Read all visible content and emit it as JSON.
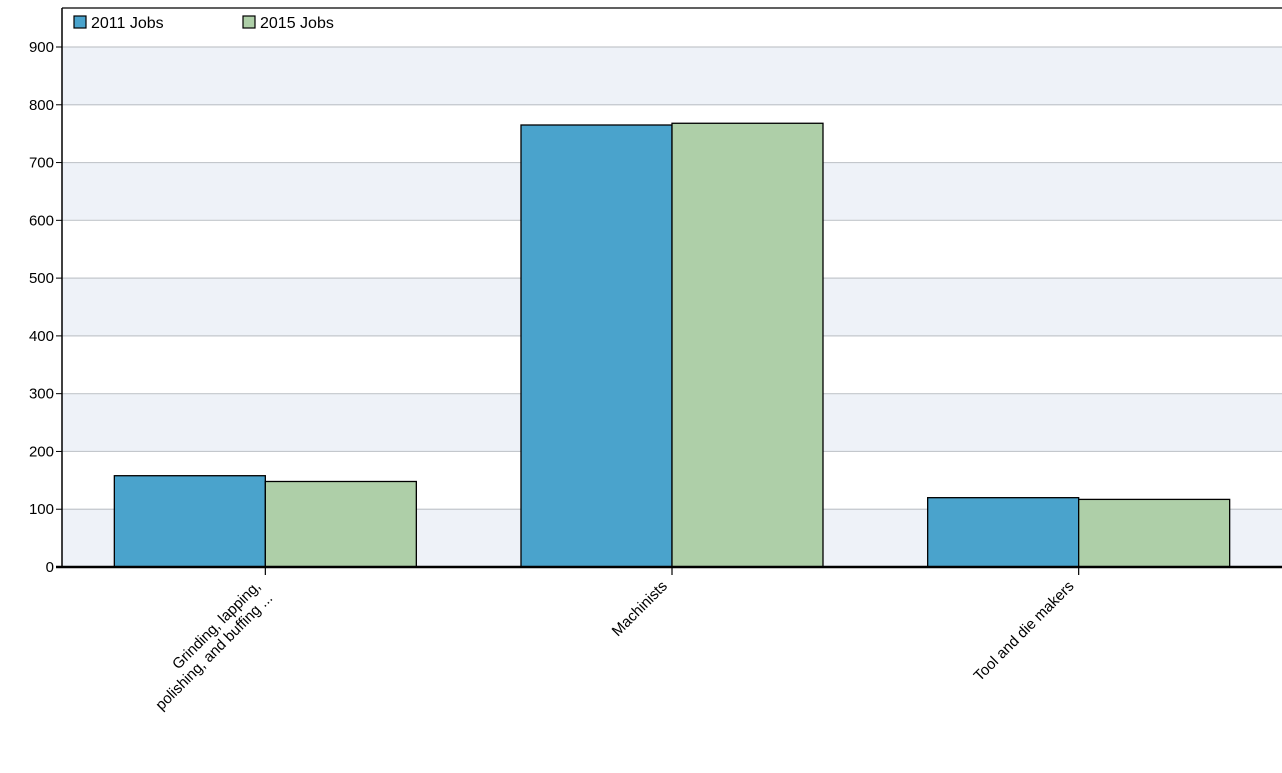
{
  "chart_data": {
    "type": "bar",
    "categories": [
      "Grinding, lapping, polishing, and buffing ...",
      "Machinists",
      "Tool and die makers"
    ],
    "category_label_lines": [
      [
        "Grinding, lapping,",
        "polishing, and buffing ..."
      ],
      [
        "Machinists"
      ],
      [
        "Tool and die makers"
      ]
    ],
    "series": [
      {
        "name": "2011 Jobs",
        "values": [
          158,
          765,
          120
        ],
        "color": "#4aa3cc"
      },
      {
        "name": "2015 Jobs",
        "values": [
          148,
          768,
          117
        ],
        "color": "#aecfa8"
      }
    ],
    "ylim": [
      0,
      900
    ],
    "yticks": [
      0,
      100,
      200,
      300,
      400,
      500,
      600,
      700,
      800,
      900
    ],
    "grid": true,
    "band_colors": [
      "#eef2f8",
      "#ffffff"
    ],
    "legend_position": "top-left",
    "title": "",
    "xlabel": "",
    "ylabel": ""
  }
}
